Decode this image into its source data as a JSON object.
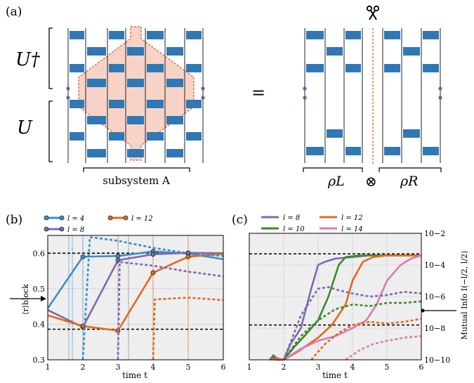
{
  "figure": {
    "panel_a": {
      "label": "(a)",
      "u_dagger": "U†",
      "u": "U",
      "equals": "=",
      "subsystem_label": "subsystem A",
      "rho_l": "ρL",
      "rho_r": "ρR",
      "otimes": "⊗",
      "scissors_icon": "scissors-icon",
      "colors": {
        "gate": "#2f78b5",
        "lightcone_fill": "#f6d3c6",
        "lightcone_edge": "#d9542b",
        "cut": "#d9542b",
        "dot": "#6b5aa6"
      }
    },
    "panel_b": {
      "label": "(b)",
      "legend": [
        "l = 4",
        "l = 12",
        "l = 8"
      ],
      "ylabel": "⟨r⟩block",
      "xlabel": "time t"
    },
    "panel_c": {
      "label": "(c)",
      "legend": [
        "l = 8",
        "l = 12",
        "l = 10",
        "l = 14"
      ],
      "ylabel": "Mutual Info I(−l/2, l/2)",
      "xlabel": "time t"
    }
  },
  "chart_data": [
    {
      "type": "line",
      "panel": "b",
      "xlabel": "time t",
      "ylabel": "⟨r⟩block",
      "xlim": [
        1,
        6
      ],
      "ylim": [
        0.3,
        0.65
      ],
      "xticks": [
        1,
        2,
        3,
        4,
        5,
        6
      ],
      "yticks": [
        0.3,
        0.4,
        0.5,
        0.6
      ],
      "grid": true,
      "hlines": [
        0.6,
        0.386
      ],
      "series": [
        {
          "name": "l = 4",
          "color": "#3b8fc8",
          "x": [
            1,
            2,
            3,
            4,
            5,
            6
          ],
          "y": [
            0.445,
            0.59,
            0.592,
            0.605,
            0.599,
            0.583
          ],
          "markers": true
        },
        {
          "name": "l = 8",
          "color": "#8068b0",
          "x": [
            1,
            2,
            3,
            4,
            5,
            6
          ],
          "y": [
            0.44,
            0.392,
            0.58,
            0.597,
            0.601,
            0.6
          ],
          "markers": true
        },
        {
          "name": "l = 12",
          "color": "#e06a1d",
          "x": [
            1,
            2,
            3,
            4,
            5,
            6
          ],
          "y": [
            0.425,
            0.395,
            0.382,
            0.545,
            0.59,
            0.598
          ],
          "markers": true
        },
        {
          "name": "",
          "color": "#3b8fc8",
          "dashed": true,
          "x": [
            2,
            2.2,
            3,
            4,
            5,
            6
          ],
          "y": [
            0.3,
            0.645,
            0.635,
            0.615,
            0.6,
            0.592
          ]
        },
        {
          "name": "",
          "color": "#8068b0",
          "dashed": true,
          "x": [
            3,
            3.05,
            4,
            5,
            6
          ],
          "y": [
            0.3,
            0.575,
            0.565,
            0.548,
            0.535
          ]
        },
        {
          "name": "",
          "color": "#e06a1d",
          "dashed": true,
          "x": [
            4,
            4.05,
            5,
            6
          ],
          "y": [
            0.3,
            0.47,
            0.475,
            0.468
          ]
        }
      ],
      "vlines": [
        {
          "x": 1.6,
          "color": "#3b8fc8"
        },
        {
          "x": 1.7,
          "color": "#3b8fc8"
        },
        {
          "x": 2.0,
          "color": "#3b8fc8"
        },
        {
          "x": 3.0,
          "color": "#8068b0"
        },
        {
          "x": 3.3,
          "color": "#8068b0"
        },
        {
          "x": 4.0,
          "color": "#e06a1d"
        },
        {
          "x": 5.0,
          "color": "#e06a1d"
        }
      ]
    },
    {
      "type": "line",
      "panel": "c",
      "xlabel": "time t",
      "ylabel": "Mutual Info I(−l/2, l/2)",
      "xlim": [
        1,
        6
      ],
      "ylim": [
        -10,
        -2
      ],
      "yscale": "log",
      "yticks": [
        -10,
        -8,
        -6,
        -4,
        -2
      ],
      "ytick_labels": [
        "10−10",
        "10−8",
        "10−6",
        "10−4",
        "10−2"
      ],
      "xticks": [
        1,
        2,
        3,
        4,
        5,
        6
      ],
      "grid": true,
      "hlines": [
        -3.3,
        -7.8
      ],
      "series": [
        {
          "name": "l = 8",
          "color": "#8068b0",
          "x": [
            1.6,
            1.7,
            1.8,
            2.0,
            2.2,
            2.5,
            2.8,
            3.0,
            3.2,
            3.5,
            4.0,
            4.5,
            5.0,
            5.5,
            6.0
          ],
          "y": [
            -10,
            -9.7,
            -9.9,
            -10,
            -9.0,
            -8.0,
            -5.5,
            -4.0,
            -3.8,
            -3.6,
            -3.5,
            -3.4,
            -3.4,
            -3.4,
            -3.4
          ]
        },
        {
          "name": "l = 10",
          "color": "#3a8a2e",
          "x": [
            1.6,
            1.7,
            1.8,
            2.0,
            2.3,
            2.6,
            3.0,
            3.3,
            3.6,
            3.8,
            4.2,
            5.0,
            5.5,
            6.0
          ],
          "y": [
            -10,
            -9.8,
            -10,
            -10,
            -9.2,
            -8.5,
            -7.5,
            -6.0,
            -4.0,
            -3.5,
            -3.4,
            -3.4,
            -3.4,
            -3.4
          ]
        },
        {
          "name": "l = 12",
          "color": "#e06a1d",
          "x": [
            1.6,
            1.8,
            2.0,
            2.4,
            3.0,
            3.4,
            3.8,
            4.0,
            4.3,
            4.6,
            5.0,
            5.5,
            6.0
          ],
          "y": [
            -10,
            -9.9,
            -10,
            -9.5,
            -8.6,
            -7.8,
            -6.5,
            -5.0,
            -3.8,
            -3.5,
            -3.4,
            -3.4,
            -3.4
          ]
        },
        {
          "name": "l = 14",
          "color": "#d97bb6",
          "x": [
            1.7,
            2.0,
            2.5,
            3.0,
            3.5,
            4.0,
            4.4,
            4.7,
            5.0,
            5.4,
            5.7,
            6.0
          ],
          "y": [
            -10,
            -10,
            -9.3,
            -8.8,
            -8.5,
            -8.0,
            -7.5,
            -6.5,
            -5.0,
            -4.0,
            -3.6,
            -3.4
          ]
        },
        {
          "name": "",
          "color": "#8068b0",
          "dashed": true,
          "x": [
            2.0,
            2.5,
            3.0,
            3.3,
            3.6,
            4.0,
            4.5,
            5.0,
            5.5,
            6.0
          ],
          "y": [
            -10,
            -7.2,
            -5.5,
            -5.4,
            -5.6,
            -5.8,
            -6.0,
            -5.9,
            -5.7,
            -5.8
          ]
        },
        {
          "name": "",
          "color": "#3a8a2e",
          "dashed": true,
          "x": [
            2.0,
            2.5,
            3.0,
            3.5,
            4.0,
            4.5,
            5.0,
            5.5,
            6.0
          ],
          "y": [
            -10,
            -8.5,
            -7.5,
            -6.8,
            -6.5,
            -6.6,
            -6.4,
            -6.4,
            -6.3
          ]
        },
        {
          "name": "",
          "color": "#e06a1d",
          "dashed": true,
          "x": [
            2.8,
            3.2,
            3.6,
            4.0,
            4.5,
            5.0,
            5.5,
            6.0
          ],
          "y": [
            -10,
            -9.0,
            -8.3,
            -7.8,
            -7.6,
            -7.7,
            -7.6,
            -7.4
          ]
        },
        {
          "name": "",
          "color": "#d97bb6",
          "dashed": true,
          "x": [
            3.8,
            4.2,
            4.6,
            5.0,
            5.5,
            6.0
          ],
          "y": [
            -10,
            -9.4,
            -9.0,
            -8.8,
            -8.6,
            -8.5
          ]
        }
      ]
    }
  ]
}
